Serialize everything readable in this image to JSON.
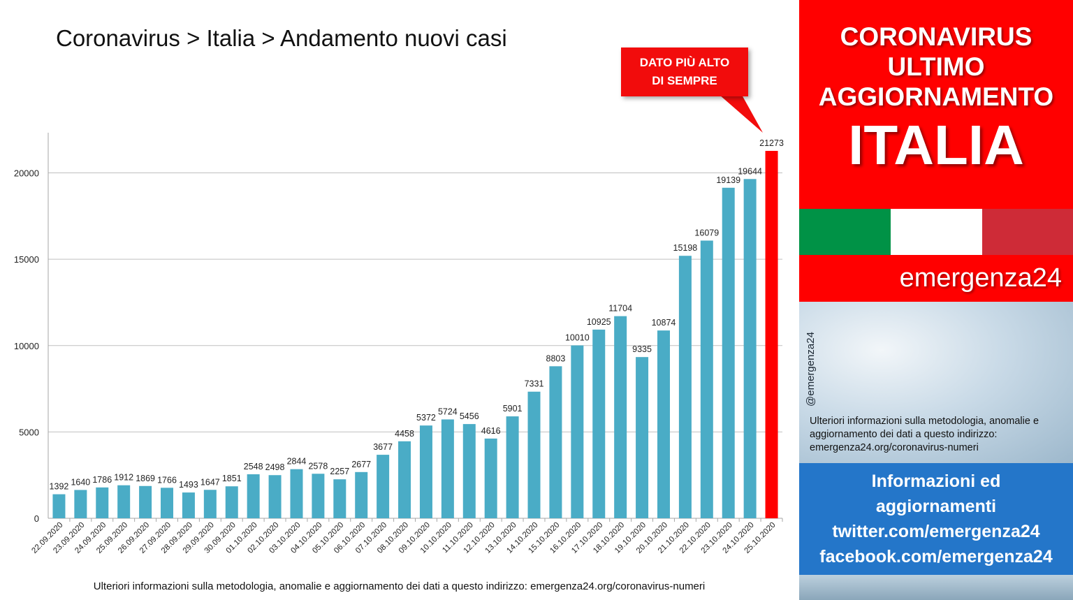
{
  "title": "Coronavirus > Italia > Andamento nuovi casi",
  "callout": {
    "line1": "DATO PIÙ ALTO",
    "line2": "DI SEMPRE"
  },
  "footer": "Ulteriori informazioni sulla metodologia, anomalie e aggiornamento dei dati a questo indirizzo: emergenza24.org/coronavirus-numeri",
  "colors": {
    "bar": "#4aacc6",
    "highlight": "#ff0000",
    "grid": "#bfbfbf"
  },
  "chart_data": {
    "type": "bar",
    "title": "Coronavirus > Italia > Andamento nuovi casi",
    "xlabel": "",
    "ylabel": "",
    "categories": [
      "22.09.2020",
      "23.09.2020",
      "24.09.2020",
      "25.09.2020",
      "26.09.2020",
      "27.09.2020",
      "28.09.2020",
      "29.09.2020",
      "30.09.2020",
      "01.10.2020",
      "02.10.2020",
      "03.10.2020",
      "04.10.2020",
      "05.10.2020",
      "06.10.2020",
      "07.10.2020",
      "08.10.2020",
      "09.10.2020",
      "10.10.2020",
      "11.10.2020",
      "12.10.2020",
      "13.10.2020",
      "14.10.2020",
      "15.10.2020",
      "16.10.2020",
      "17.10.2020",
      "18.10.2020",
      "19.10.2020",
      "20.10.2020",
      "21.10.2020",
      "22.10.2020",
      "23.10.2020",
      "24.10.2020",
      "25.10.2020"
    ],
    "values": [
      1392,
      1640,
      1786,
      1912,
      1869,
      1766,
      1493,
      1647,
      1851,
      2548,
      2498,
      2844,
      2578,
      2257,
      2677,
      3677,
      4458,
      5372,
      5724,
      5456,
      4616,
      5901,
      7331,
      8803,
      10010,
      10925,
      11704,
      9335,
      10874,
      15198,
      16079,
      19139,
      19644,
      21273
    ],
    "highlight_index": 33,
    "ylim": [
      0,
      22000
    ],
    "yticks": [
      0,
      5000,
      10000,
      15000,
      20000
    ],
    "grid": true,
    "legend": "none"
  },
  "sidebar": {
    "line1": "CORONAVIRUS",
    "line2": "ULTIMO",
    "line3": "AGGIORNAMENTO",
    "country": "ITALIA",
    "flag_colors": [
      "#009246",
      "#ffffff",
      "#ce2b37"
    ],
    "brand": "emergenza24",
    "handle": "@emergenza24",
    "info_note": "Ulteriori informazioni sulla metodologia, anomalie e aggiornamento dei dati a questo indirizzo: emergenza24.org/coronavirus-numeri",
    "links": [
      "Informazioni ed",
      "aggiornamenti",
      "twitter.com/emergenza24",
      "facebook.com/emergenza24"
    ]
  }
}
